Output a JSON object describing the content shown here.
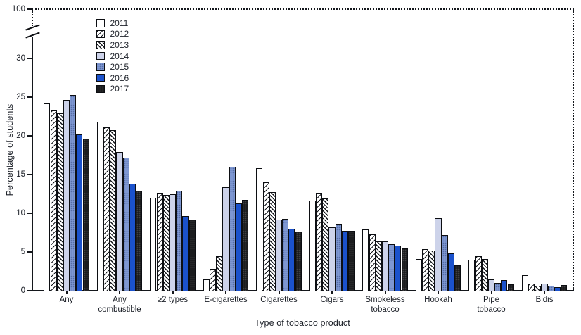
{
  "figure": {
    "kind": "grouped bar chart with broken y-axis",
    "ink_color": "#14171c",
    "text_color": "#1b1f27"
  },
  "chart_data": {
    "type": "bar",
    "title": "",
    "xlabel": "Type of tobacco product",
    "ylabel": "Percentage of students",
    "y_ticks": [
      0,
      5,
      10,
      15,
      20,
      25,
      30
    ],
    "y_axis_break": {
      "present": true,
      "upper_tick": 100,
      "break_between": [
        30,
        100
      ]
    },
    "ylim": [
      0,
      100
    ],
    "visible_value_range": [
      0,
      33
    ],
    "grid": false,
    "legend": {
      "position": "upper-left-inside",
      "entries": [
        "2011",
        "2012",
        "2013",
        "2014",
        "2015",
        "2016",
        "2017"
      ]
    },
    "categories": [
      "Any",
      "Any\ncombustible",
      "≥2 types",
      "E-cigarettes",
      "Cigarettes",
      "Cigars",
      "Smokeless\ntobacco",
      "Hookah",
      "Pipe\ntobacco",
      "Bidis"
    ],
    "series": [
      {
        "name": "2011",
        "fill": "open",
        "color": "#ffffff",
        "values": [
          24.2,
          21.8,
          12.0,
          1.5,
          15.8,
          11.6,
          7.9,
          4.1,
          4.0,
          2.0
        ]
      },
      {
        "name": "2012",
        "fill": "hatch-forward",
        "color": "#ffffff",
        "values": [
          23.3,
          21.1,
          12.6,
          2.8,
          14.0,
          12.6,
          7.3,
          5.4,
          4.5,
          0.9
        ]
      },
      {
        "name": "2013",
        "fill": "hatch-back",
        "color": "#ffffff",
        "values": [
          22.9,
          20.7,
          12.4,
          4.5,
          12.7,
          11.9,
          6.4,
          5.2,
          4.1,
          0.6
        ]
      },
      {
        "name": "2014",
        "fill": "solid",
        "color": "#cdd3ea",
        "values": [
          24.6,
          17.9,
          12.5,
          13.4,
          9.2,
          8.2,
          6.4,
          9.4,
          1.5,
          0.9
        ]
      },
      {
        "name": "2015",
        "fill": "solid-dotted",
        "color": "#7e97d2",
        "values": [
          25.3,
          17.2,
          12.9,
          16.0,
          9.3,
          8.6,
          6.0,
          7.2,
          1.0,
          0.6
        ]
      },
      {
        "name": "2016",
        "fill": "solid",
        "color": "#1b52cc",
        "values": [
          20.2,
          13.8,
          9.6,
          11.3,
          8.0,
          7.7,
          5.8,
          4.8,
          1.4,
          0.5
        ]
      },
      {
        "name": "2017",
        "fill": "solid-dotted-dark",
        "color": "#1b1c1e",
        "values": [
          19.6,
          12.9,
          9.2,
          11.7,
          7.6,
          7.7,
          5.5,
          3.3,
          0.8,
          0.7
        ]
      }
    ]
  }
}
